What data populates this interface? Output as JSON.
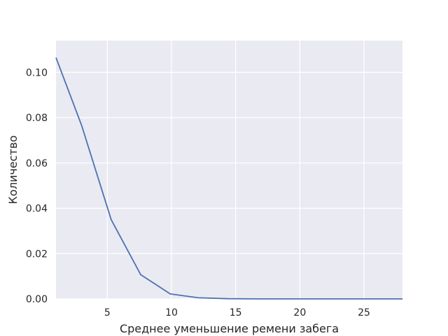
{
  "chart_data": {
    "type": "line",
    "xlabel": "Среднее уменьшение ремени забега",
    "ylabel": "Количество",
    "xlim": [
      1,
      28
    ],
    "ylim": [
      0,
      0.114
    ],
    "x_ticks": [
      5,
      10,
      15,
      20,
      25
    ],
    "y_ticks": [
      0.0,
      0.02,
      0.04,
      0.06,
      0.08,
      0.1
    ],
    "x_tick_labels": [
      "5",
      "10",
      "15",
      "20",
      "25"
    ],
    "y_tick_labels": [
      "0.00",
      "0.02",
      "0.04",
      "0.06",
      "0.08",
      "0.10"
    ],
    "grid": true,
    "background_color": "#eaeaf2",
    "grid_color": "#ffffff",
    "series": [
      {
        "color": "#4c72b0",
        "x": [
          1.0,
          3.0,
          5.3,
          7.6,
          9.9,
          12.1,
          14.4,
          16.7,
          19.0,
          21.3,
          23.5,
          25.8,
          28.0
        ],
        "y": [
          0.1065,
          0.0765,
          0.035,
          0.0107,
          0.0022,
          0.0005,
          0.0001,
          0.0,
          0.0,
          0.0,
          0.0,
          0.0,
          0.0
        ]
      }
    ]
  }
}
